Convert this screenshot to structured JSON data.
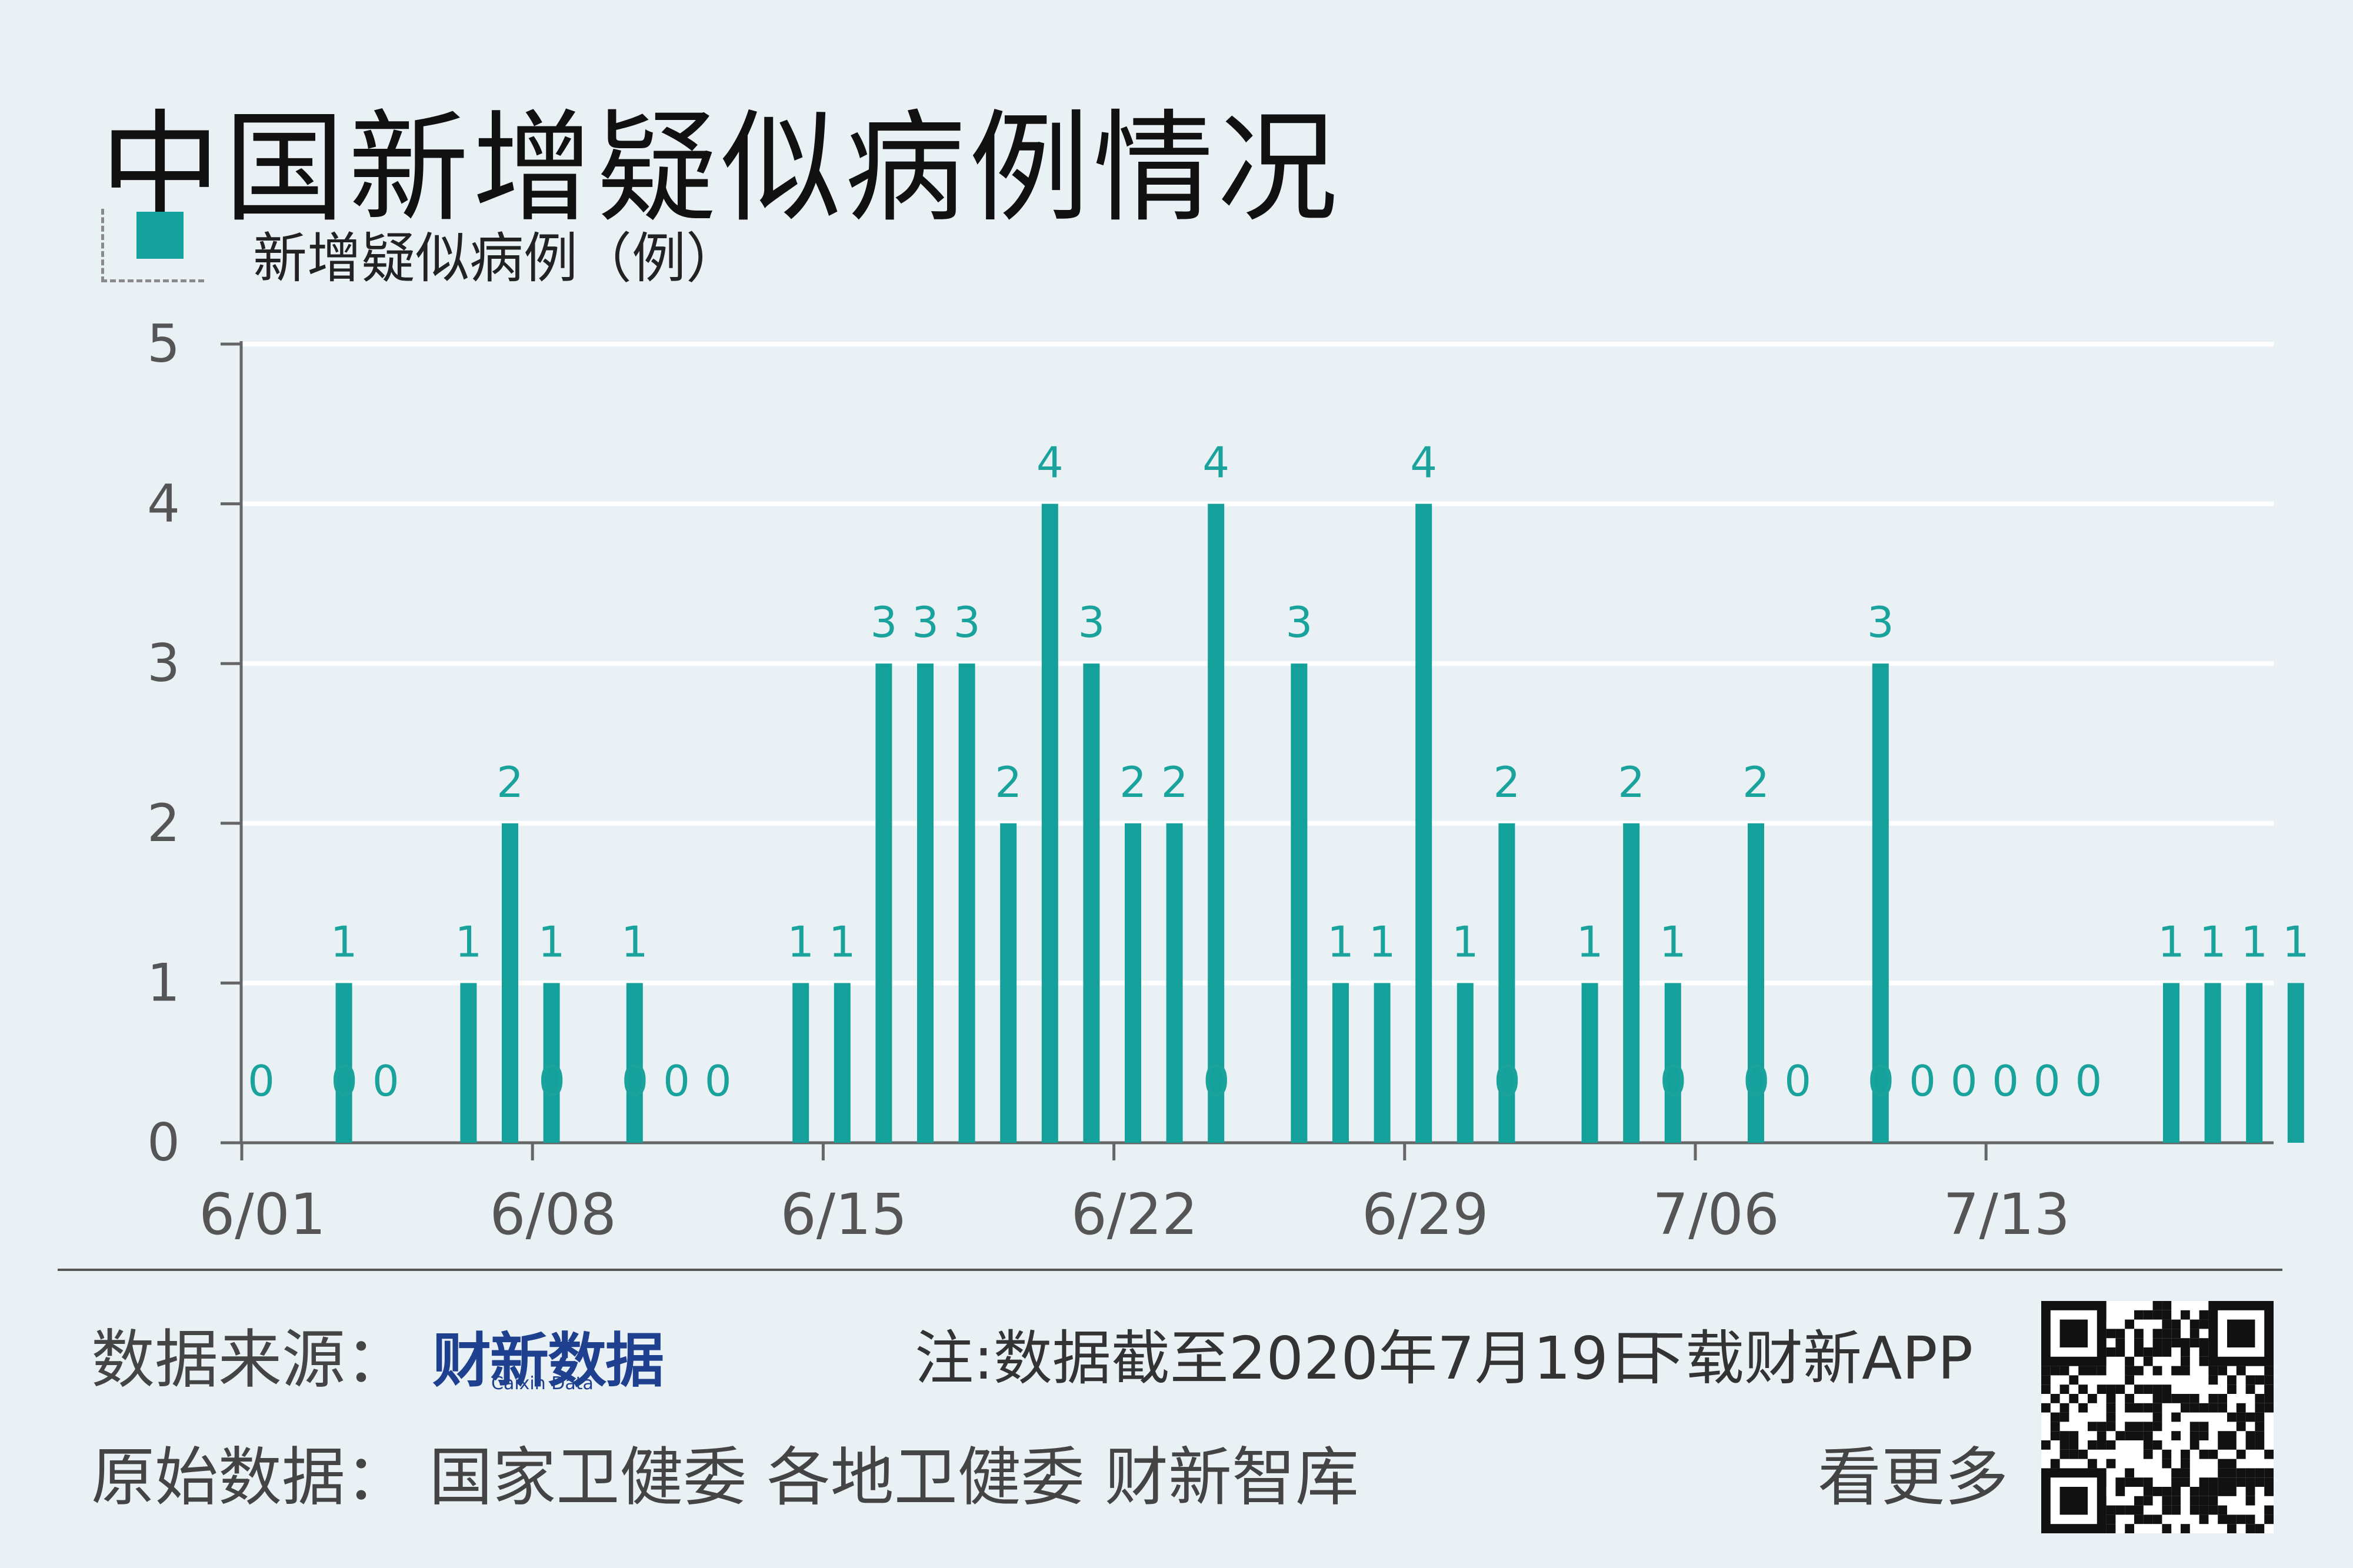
{
  "title": "中国新增疑似病例情况",
  "legend": {
    "label": "新增疑似病例（例）"
  },
  "colors": {
    "bar": "#14a09b",
    "label": "#1aa29c",
    "background": "#e9f1f5"
  },
  "chart_data": {
    "type": "bar",
    "title": "中国新增疑似病例情况",
    "series": [
      {
        "name": "新增疑似病例（例）",
        "values": [
          0,
          1,
          0,
          0,
          1,
          2,
          1,
          0,
          1,
          0,
          0,
          0,
          1,
          1,
          3,
          3,
          3,
          2,
          4,
          3,
          2,
          2,
          4,
          0,
          3,
          1,
          1,
          4,
          1,
          2,
          0,
          1,
          2,
          1,
          0,
          2,
          0,
          0,
          3,
          0,
          0,
          0,
          0,
          0,
          0,
          1,
          1,
          1,
          1
        ]
      }
    ],
    "categories": [
      "6/01",
      "6/02",
      "6/03",
      "6/04",
      "6/05",
      "6/06",
      "6/07",
      "6/08",
      "6/09",
      "6/10",
      "6/11",
      "6/12",
      "6/13",
      "6/14",
      "6/15",
      "6/16",
      "6/17",
      "6/18",
      "6/19",
      "6/20",
      "6/21",
      "6/22",
      "6/23",
      "6/24",
      "6/25",
      "6/26",
      "6/27",
      "6/28",
      "6/29",
      "6/30",
      "7/01",
      "7/02",
      "7/03",
      "7/04",
      "7/05",
      "7/06",
      "7/07",
      "7/08",
      "7/09",
      "7/10",
      "7/11",
      "7/12",
      "7/13",
      "7/14",
      "7/15",
      "7/16",
      "7/17",
      "7/18",
      "7/19"
    ],
    "xtick_labels": [
      "6/01",
      "6/08",
      "6/15",
      "6/22",
      "6/29",
      "7/06",
      "7/13"
    ],
    "yticks": [
      0,
      1,
      2,
      3,
      4,
      5
    ],
    "ylim": [
      0,
      5
    ],
    "grid": true
  },
  "footer": {
    "source_label": "数据来源：",
    "brand": "财新数据",
    "brand_sub": "Caixin Data",
    "note": "注:数据截至2020年7月19日",
    "download": "下载财新APP",
    "origin": "原始数据：  国家卫健委  各地卫健委  财新智库",
    "more": "看更多"
  }
}
